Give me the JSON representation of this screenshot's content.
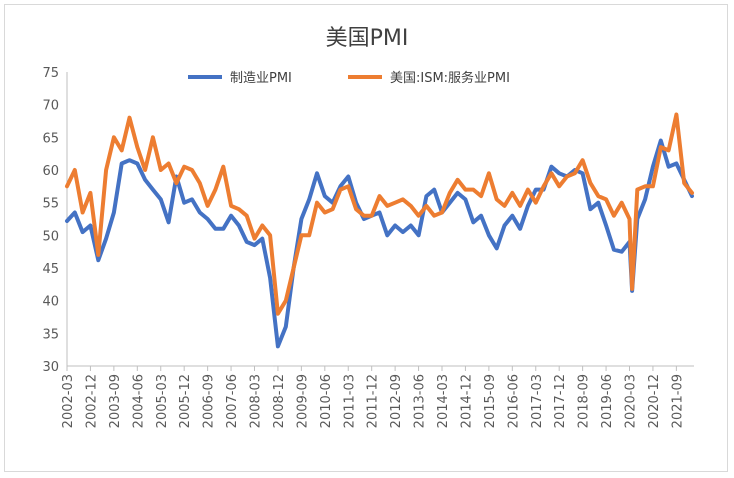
{
  "chart_data": {
    "type": "line",
    "title": "美国PMI",
    "legend_position": "top",
    "ylim": [
      30,
      75
    ],
    "y_ticks": [
      30,
      35,
      40,
      45,
      50,
      55,
      60,
      65,
      70,
      75
    ],
    "x_tick_labels": [
      "2002-03",
      "2002-12",
      "2003-09",
      "2004-06",
      "2005-03",
      "2005-12",
      "2006-09",
      "2007-06",
      "2008-03",
      "2008-12",
      "2009-09",
      "2010-06",
      "2011-03",
      "2011-12",
      "2012-09",
      "2013-06",
      "2014-03",
      "2014-12",
      "2015-09",
      "2016-06",
      "2017-03",
      "2017-12",
      "2018-09",
      "2019-06",
      "2020-03",
      "2020-12",
      "2021-09"
    ],
    "grid": false,
    "series": [
      {
        "name": "制造业PMI",
        "color": "#4472C4",
        "points": [
          [
            "2002-03",
            52.2
          ],
          [
            "2002-06",
            53.5
          ],
          [
            "2002-09",
            50.5
          ],
          [
            "2002-12",
            51.5
          ],
          [
            "2003-03",
            46.2
          ],
          [
            "2003-06",
            49.5
          ],
          [
            "2003-09",
            53.5
          ],
          [
            "2003-12",
            61.0
          ],
          [
            "2004-03",
            61.5
          ],
          [
            "2004-06",
            61.0
          ],
          [
            "2004-09",
            58.5
          ],
          [
            "2004-12",
            57.0
          ],
          [
            "2005-03",
            55.5
          ],
          [
            "2005-06",
            52.0
          ],
          [
            "2005-09",
            59.0
          ],
          [
            "2005-12",
            55.0
          ],
          [
            "2006-03",
            55.5
          ],
          [
            "2006-06",
            53.5
          ],
          [
            "2006-09",
            52.5
          ],
          [
            "2006-12",
            51.0
          ],
          [
            "2007-03",
            51.0
          ],
          [
            "2007-06",
            53.0
          ],
          [
            "2007-09",
            51.5
          ],
          [
            "2007-12",
            49.0
          ],
          [
            "2008-03",
            48.5
          ],
          [
            "2008-06",
            49.5
          ],
          [
            "2008-09",
            43.5
          ],
          [
            "2008-12",
            33.0
          ],
          [
            "2009-03",
            36.0
          ],
          [
            "2009-06",
            45.0
          ],
          [
            "2009-09",
            52.5
          ],
          [
            "2009-12",
            55.5
          ],
          [
            "2010-03",
            59.5
          ],
          [
            "2010-06",
            56.0
          ],
          [
            "2010-09",
            55.0
          ],
          [
            "2010-12",
            57.5
          ],
          [
            "2011-03",
            59.0
          ],
          [
            "2011-06",
            55.0
          ],
          [
            "2011-09",
            52.5
          ],
          [
            "2011-12",
            53.0
          ],
          [
            "2012-03",
            53.5
          ],
          [
            "2012-06",
            50.0
          ],
          [
            "2012-09",
            51.5
          ],
          [
            "2012-12",
            50.5
          ],
          [
            "2013-03",
            51.5
          ],
          [
            "2013-06",
            50.0
          ],
          [
            "2013-09",
            56.0
          ],
          [
            "2013-12",
            57.0
          ],
          [
            "2014-03",
            53.5
          ],
          [
            "2014-06",
            55.0
          ],
          [
            "2014-09",
            56.5
          ],
          [
            "2014-12",
            55.5
          ],
          [
            "2015-03",
            52.0
          ],
          [
            "2015-06",
            53.0
          ],
          [
            "2015-09",
            50.0
          ],
          [
            "2015-12",
            48.0
          ],
          [
            "2016-03",
            51.5
          ],
          [
            "2016-06",
            53.0
          ],
          [
            "2016-09",
            51.0
          ],
          [
            "2016-12",
            54.5
          ],
          [
            "2017-03",
            57.0
          ],
          [
            "2017-06",
            57.0
          ],
          [
            "2017-09",
            60.5
          ],
          [
            "2017-12",
            59.5
          ],
          [
            "2018-03",
            59.0
          ],
          [
            "2018-06",
            60.0
          ],
          [
            "2018-09",
            59.5
          ],
          [
            "2018-12",
            54.0
          ],
          [
            "2019-03",
            55.0
          ],
          [
            "2019-06",
            51.5
          ],
          [
            "2019-09",
            47.8
          ],
          [
            "2019-12",
            47.5
          ],
          [
            "2020-03",
            49.0
          ],
          [
            "2020-04",
            41.5
          ],
          [
            "2020-06",
            52.5
          ],
          [
            "2020-09",
            55.5
          ],
          [
            "2020-12",
            60.5
          ],
          [
            "2021-03",
            64.5
          ],
          [
            "2021-06",
            60.5
          ],
          [
            "2021-09",
            61.0
          ],
          [
            "2021-12",
            58.5
          ],
          [
            "2022-03",
            56.0
          ]
        ]
      },
      {
        "name": "美国:ISM:服务业PMI",
        "color": "#ED7D31",
        "points": [
          [
            "2002-03",
            57.5
          ],
          [
            "2002-06",
            60.0
          ],
          [
            "2002-09",
            53.5
          ],
          [
            "2002-12",
            56.5
          ],
          [
            "2003-03",
            47.0
          ],
          [
            "2003-06",
            60.0
          ],
          [
            "2003-09",
            65.0
          ],
          [
            "2003-12",
            63.0
          ],
          [
            "2004-03",
            68.0
          ],
          [
            "2004-06",
            63.5
          ],
          [
            "2004-09",
            60.0
          ],
          [
            "2004-12",
            65.0
          ],
          [
            "2005-03",
            60.0
          ],
          [
            "2005-06",
            61.0
          ],
          [
            "2005-09",
            58.0
          ],
          [
            "2005-12",
            60.5
          ],
          [
            "2006-03",
            60.0
          ],
          [
            "2006-06",
            58.0
          ],
          [
            "2006-09",
            54.5
          ],
          [
            "2006-12",
            57.0
          ],
          [
            "2007-03",
            60.5
          ],
          [
            "2007-06",
            54.5
          ],
          [
            "2007-09",
            54.0
          ],
          [
            "2007-12",
            53.0
          ],
          [
            "2008-03",
            49.5
          ],
          [
            "2008-06",
            51.5
          ],
          [
            "2008-09",
            50.0
          ],
          [
            "2008-12",
            38.0
          ],
          [
            "2009-03",
            40.0
          ],
          [
            "2009-06",
            45.0
          ],
          [
            "2009-09",
            50.0
          ],
          [
            "2009-12",
            50.0
          ],
          [
            "2010-03",
            55.0
          ],
          [
            "2010-06",
            53.5
          ],
          [
            "2010-09",
            54.0
          ],
          [
            "2010-12",
            57.0
          ],
          [
            "2011-03",
            57.5
          ],
          [
            "2011-06",
            54.0
          ],
          [
            "2011-09",
            53.0
          ],
          [
            "2011-12",
            53.0
          ],
          [
            "2012-03",
            56.0
          ],
          [
            "2012-06",
            54.5
          ],
          [
            "2012-09",
            55.0
          ],
          [
            "2012-12",
            55.5
          ],
          [
            "2013-03",
            54.5
          ],
          [
            "2013-06",
            53.0
          ],
          [
            "2013-09",
            54.5
          ],
          [
            "2013-12",
            53.0
          ],
          [
            "2014-03",
            53.5
          ],
          [
            "2014-06",
            56.5
          ],
          [
            "2014-09",
            58.5
          ],
          [
            "2014-12",
            57.0
          ],
          [
            "2015-03",
            57.0
          ],
          [
            "2015-06",
            56.0
          ],
          [
            "2015-09",
            59.5
          ],
          [
            "2015-12",
            55.5
          ],
          [
            "2016-03",
            54.5
          ],
          [
            "2016-06",
            56.5
          ],
          [
            "2016-09",
            54.5
          ],
          [
            "2016-12",
            57.0
          ],
          [
            "2017-03",
            55.0
          ],
          [
            "2017-06",
            57.5
          ],
          [
            "2017-09",
            59.5
          ],
          [
            "2017-12",
            57.5
          ],
          [
            "2018-03",
            59.0
          ],
          [
            "2018-06",
            59.5
          ],
          [
            "2018-09",
            61.5
          ],
          [
            "2018-12",
            58.0
          ],
          [
            "2019-03",
            56.0
          ],
          [
            "2019-06",
            55.5
          ],
          [
            "2019-09",
            53.0
          ],
          [
            "2019-12",
            55.0
          ],
          [
            "2020-03",
            52.5
          ],
          [
            "2020-04",
            41.8
          ],
          [
            "2020-06",
            57.0
          ],
          [
            "2020-09",
            57.5
          ],
          [
            "2020-12",
            57.5
          ],
          [
            "2021-03",
            63.5
          ],
          [
            "2021-06",
            63.0
          ],
          [
            "2021-09",
            68.5
          ],
          [
            "2021-12",
            58.0
          ],
          [
            "2022-03",
            56.5
          ]
        ]
      }
    ]
  }
}
